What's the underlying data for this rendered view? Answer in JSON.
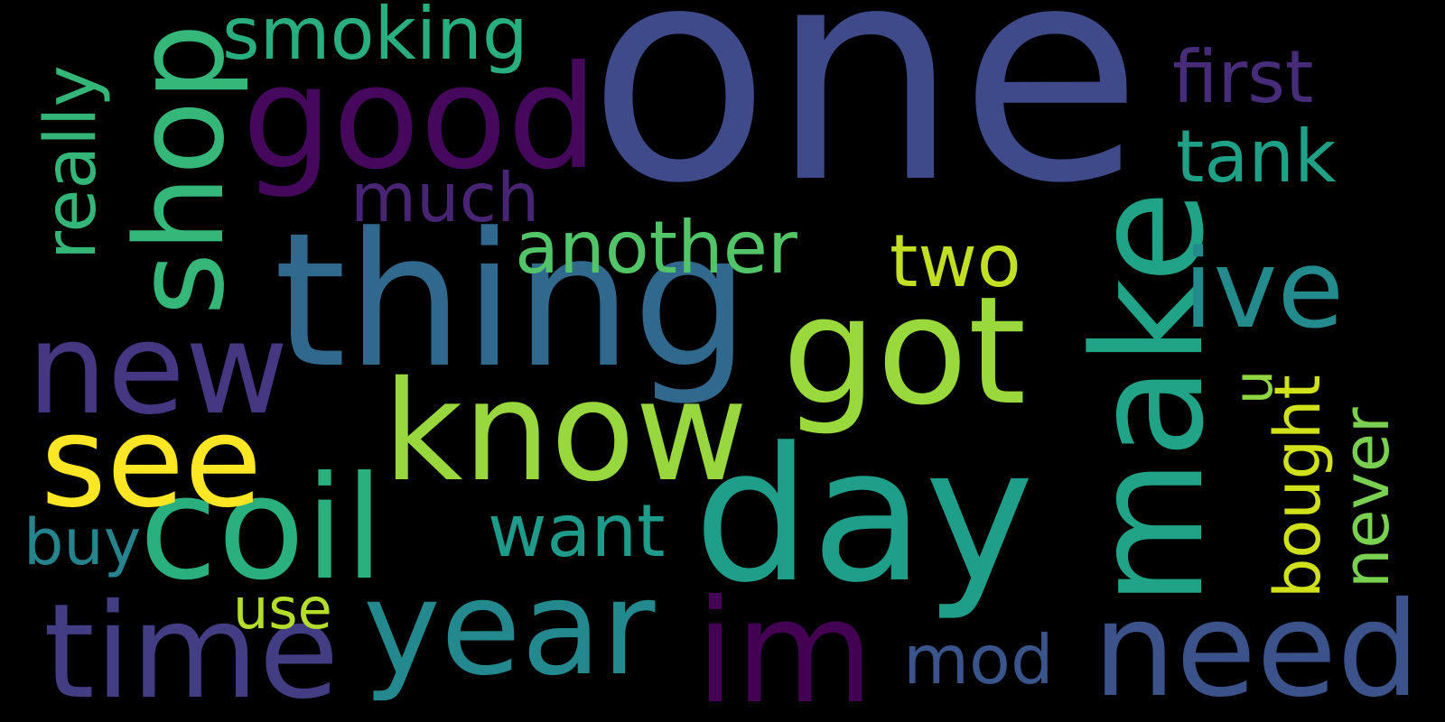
{
  "words": {
    "one": "one",
    "thing": "thing",
    "day": "day",
    "make": "make",
    "got": "got",
    "good": "good",
    "know": "know",
    "coil": "coil",
    "time": "time",
    "year": "year",
    "need": "need",
    "im": "im",
    "see": "see",
    "new": "new",
    "shop": "shop",
    "ive": "ive",
    "smoking": "smoking",
    "first": "first",
    "tank": "tank",
    "another": "another",
    "much": "much",
    "two": "two",
    "really": "really",
    "want": "want",
    "buy": "buy",
    "use": "use",
    "mod": "mod",
    "u": "u",
    "bought": "bought",
    "never": "never"
  },
  "colors": {
    "background": "#000000",
    "one": "#3f4a8a",
    "thing": "#31688e",
    "day": "#1f9e89",
    "make": "#20a386",
    "got": "#9ad93c",
    "good": "#46085c",
    "know": "#98d83e",
    "coil": "#2ab07f",
    "time": "#433d84",
    "year": "#23898e",
    "need": "#3b528b",
    "im": "#440154",
    "see": "#fde725",
    "new": "#453781",
    "shop": "#35b779",
    "ive": "#238a8d",
    "smoking": "#29af7f",
    "first": "#472c7a",
    "tank": "#1fa188",
    "another": "#52c569",
    "much": "#482475",
    "two": "#c2df23",
    "really": "#34b679",
    "want": "#1e9b8a",
    "buy": "#25848e",
    "use": "#b5de2b",
    "mod": "#39558c",
    "u": "#90d743",
    "bought": "#d0e11c",
    "never": "#7ad151"
  }
}
